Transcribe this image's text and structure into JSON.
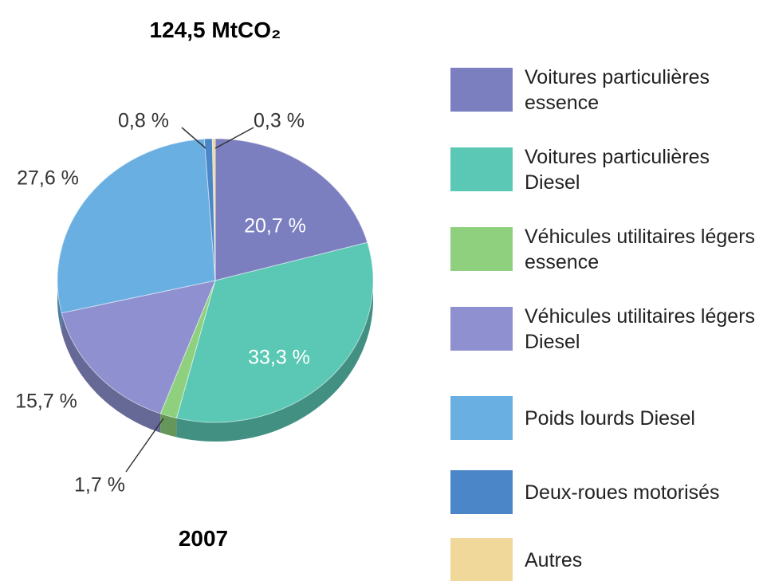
{
  "chart_data": {
    "type": "pie",
    "title": "124,5 MtCO₂",
    "subtitle": "2007",
    "categories": [
      "Voitures particulières essence",
      "Voitures particulières Diesel",
      "Véhicules utilitaires légers essence",
      "Véhicules utilitaires légers Diesel",
      "Poids lourds Diesel",
      "Deux-roues motorisés",
      "Autres"
    ],
    "values": [
      20.7,
      33.3,
      1.7,
      15.7,
      27.6,
      0.8,
      0.3
    ],
    "value_labels": [
      "20,7 %",
      "33,3 %",
      "1,7 %",
      "15,7 %",
      "27,6 %",
      "0,8 %",
      "0,3 %"
    ],
    "colors": [
      "#7b7fc0",
      "#5ac8b4",
      "#8fd07f",
      "#8e90cf",
      "#6aafe2",
      "#4a86c8",
      "#f0d89a"
    ],
    "legend": "right"
  }
}
